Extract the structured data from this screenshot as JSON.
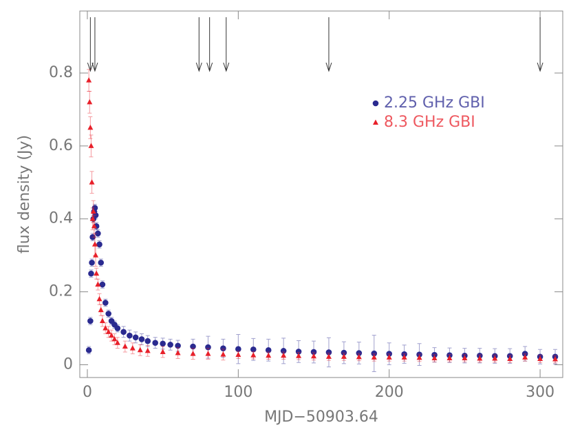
{
  "chart_data": {
    "type": "scatter",
    "xlabel": "MJD−50903.64",
    "ylabel": "flux density (Jy)",
    "xlim": [
      -5,
      315
    ],
    "ylim": [
      -0.035,
      0.97
    ],
    "xticks": [
      0,
      100,
      200,
      300
    ],
    "yticks": [
      0,
      0.2,
      0.4,
      0.6,
      0.8
    ],
    "legend": "upper right",
    "arrows": [
      2,
      5,
      74,
      81,
      92,
      160,
      300
    ],
    "series": [
      {
        "name": "2.25 GHz GBI",
        "color": "#2a2a90",
        "marker": "circle",
        "x": [
          1,
          2,
          2.5,
          3,
          3.5,
          4,
          4.5,
          5,
          5.5,
          6,
          7,
          8,
          9,
          10,
          12,
          14,
          16,
          18,
          20,
          24,
          28,
          32,
          36,
          40,
          45,
          50,
          55,
          60,
          70,
          80,
          90,
          100,
          110,
          120,
          130,
          140,
          150,
          160,
          170,
          180,
          190,
          200,
          210,
          220,
          230,
          240,
          250,
          260,
          270,
          280,
          290,
          300,
          310
        ],
        "values": [
          0.04,
          0.12,
          0.25,
          0.28,
          0.35,
          0.4,
          0.42,
          0.43,
          0.41,
          0.38,
          0.36,
          0.33,
          0.28,
          0.22,
          0.17,
          0.14,
          0.12,
          0.11,
          0.1,
          0.09,
          0.08,
          0.075,
          0.07,
          0.065,
          0.06,
          0.058,
          0.055,
          0.052,
          0.05,
          0.048,
          0.045,
          0.043,
          0.042,
          0.04,
          0.038,
          0.036,
          0.035,
          0.034,
          0.033,
          0.032,
          0.031,
          0.03,
          0.029,
          0.028,
          0.027,
          0.026,
          0.025,
          0.025,
          0.024,
          0.024,
          0.03,
          0.022,
          0.022
        ],
        "errors": [
          0.01,
          0.01,
          0.01,
          0.01,
          0.01,
          0.01,
          0.01,
          0.01,
          0.01,
          0.01,
          0.01,
          0.01,
          0.01,
          0.01,
          0.01,
          0.01,
          0.01,
          0.01,
          0.01,
          0.015,
          0.015,
          0.015,
          0.015,
          0.015,
          0.015,
          0.015,
          0.015,
          0.015,
          0.02,
          0.03,
          0.025,
          0.04,
          0.03,
          0.03,
          0.035,
          0.03,
          0.03,
          0.04,
          0.03,
          0.03,
          0.05,
          0.03,
          0.025,
          0.03,
          0.02,
          0.02,
          0.02,
          0.02,
          0.02,
          0.02,
          0.02,
          0.02,
          0.02
        ]
      },
      {
        "name": "8.3 GHz GBI",
        "color": "#e8202a",
        "marker": "triangle",
        "x": [
          1,
          1.5,
          2,
          2.5,
          3,
          3.5,
          4,
          4.5,
          5,
          5.5,
          6,
          7,
          8,
          9,
          10,
          12,
          14,
          16,
          18,
          20,
          25,
          30,
          35,
          40,
          50,
          60,
          70,
          80,
          90,
          100,
          110,
          120,
          130,
          140,
          150,
          160,
          170,
          180,
          190,
          200,
          210,
          220,
          230,
          240,
          250,
          260,
          270,
          280,
          290,
          300,
          310
        ],
        "values": [
          0.78,
          0.72,
          0.65,
          0.6,
          0.5,
          0.4,
          0.42,
          0.38,
          0.33,
          0.3,
          0.25,
          0.22,
          0.18,
          0.15,
          0.12,
          0.1,
          0.09,
          0.08,
          0.07,
          0.06,
          0.05,
          0.045,
          0.04,
          0.038,
          0.035,
          0.032,
          0.03,
          0.03,
          0.028,
          0.027,
          0.026,
          0.025,
          0.025,
          0.024,
          0.023,
          0.022,
          0.022,
          0.021,
          0.02,
          0.02,
          0.02,
          0.019,
          0.018,
          0.018,
          0.018,
          0.017,
          0.017,
          0.016,
          0.02,
          0.016,
          0.015
        ],
        "errors": [
          0.03,
          0.03,
          0.03,
          0.03,
          0.03,
          0.03,
          0.03,
          0.03,
          0.03,
          0.03,
          0.015,
          0.015,
          0.015,
          0.015,
          0.015,
          0.015,
          0.015,
          0.015,
          0.015,
          0.015,
          0.015,
          0.015,
          0.015,
          0.015,
          0.015,
          0.015,
          0.015,
          0.015,
          0.015,
          0.01,
          0.01,
          0.01,
          0.01,
          0.01,
          0.01,
          0.01,
          0.01,
          0.01,
          0.01,
          0.01,
          0.01,
          0.01,
          0.01,
          0.01,
          0.01,
          0.01,
          0.01,
          0.01,
          0.01,
          0.01,
          0.01
        ]
      }
    ]
  }
}
